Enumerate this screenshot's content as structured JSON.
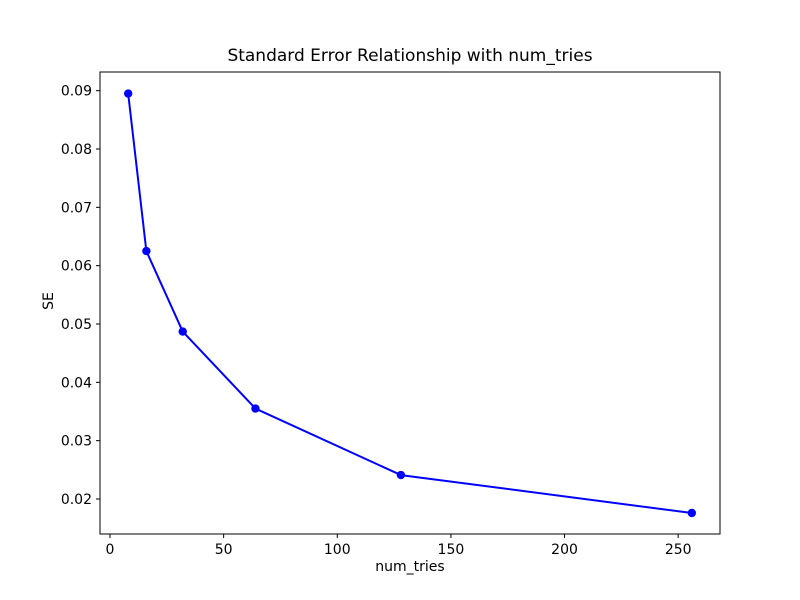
{
  "figure": {
    "background_color": "#ffffff",
    "spine_color": "#000000",
    "text_color": "#000000"
  },
  "chart_data": {
    "type": "line",
    "title": "Standard Error Relationship with num_tries",
    "xlabel": "num_tries",
    "ylabel": "SE",
    "x": [
      8,
      16,
      32,
      64,
      128,
      256
    ],
    "y": [
      0.0895,
      0.0625,
      0.0487,
      0.0355,
      0.0241,
      0.0176
    ],
    "line_color": "#0000ff",
    "marker": "circle",
    "marker_color": "#0000ff",
    "xticks": [
      0,
      50,
      100,
      150,
      200,
      250
    ],
    "yticks": [
      0.02,
      0.03,
      0.04,
      0.05,
      0.06,
      0.07,
      0.08,
      0.09
    ],
    "ytick_decimals": 2,
    "xlim": [
      -4.4,
      268.4
    ],
    "ylim": [
      0.014,
      0.0932
    ],
    "grid": false,
    "legend_position": "none"
  }
}
